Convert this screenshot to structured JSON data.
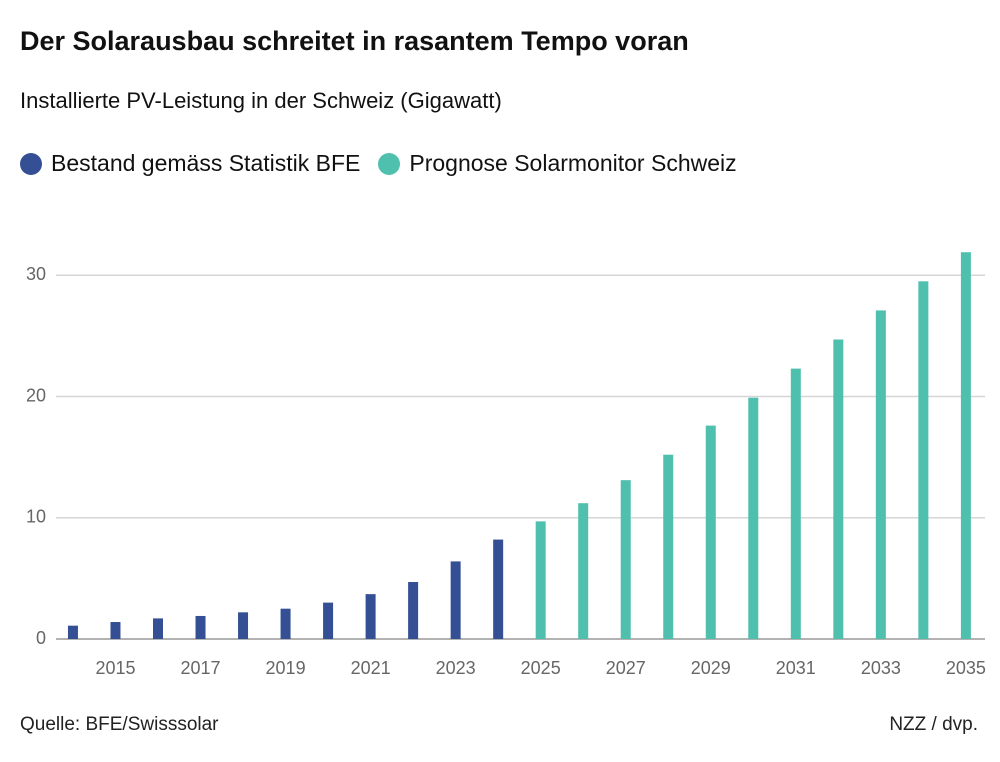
{
  "chart_data": {
    "type": "bar",
    "title": "Der Solarausbau schreitet in rasantem Tempo voran",
    "subtitle": "Installierte PV-Leistung in der Schweiz (Gigawatt)",
    "categories": [
      null,
      "2015",
      null,
      "2017",
      null,
      "2019",
      null,
      "2021",
      null,
      "2023",
      null,
      "2025",
      null,
      "2027",
      null,
      "2029",
      null,
      "2031",
      null,
      "2033",
      null,
      "2035"
    ],
    "series": [
      {
        "name": "Bestand gemäss Statistik BFE",
        "color": "#344f94",
        "values": [
          1.1,
          1.4,
          1.7,
          1.9,
          2.2,
          2.5,
          3.0,
          3.7,
          4.7,
          6.4,
          8.2,
          null,
          null,
          null,
          null,
          null,
          null,
          null,
          null,
          null,
          null,
          null
        ]
      },
      {
        "name": "Prognose Solarmonitor Schweiz",
        "color": "#4fbfae",
        "values": [
          null,
          null,
          null,
          null,
          null,
          null,
          null,
          null,
          null,
          null,
          null,
          9.7,
          11.2,
          13.1,
          15.2,
          17.6,
          19.9,
          22.3,
          24.7,
          27.1,
          29.5,
          31.9
        ]
      }
    ],
    "ylim": [
      0,
      32
    ],
    "yticks": [
      0,
      10,
      20,
      30
    ],
    "grid": true,
    "source": "Quelle: BFE/Swisssolar",
    "credit": "NZZ / dvp."
  }
}
